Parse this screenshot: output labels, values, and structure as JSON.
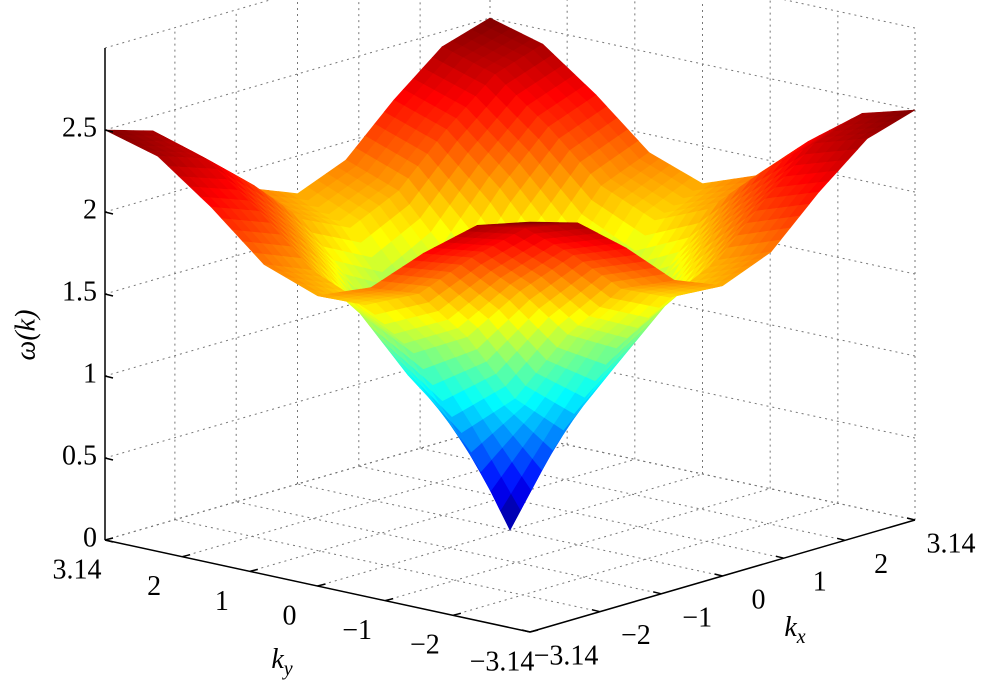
{
  "chart_data": {
    "type": "surface",
    "zlabel": "ω(k)",
    "xlabel": [
      "k",
      "x"
    ],
    "ylabel": [
      "k",
      "y"
    ],
    "x": [
      -3.14,
      -2.36,
      -1.57,
      -0.79,
      0,
      0.79,
      1.57,
      2.36,
      3.14
    ],
    "y": [
      -3.14,
      -2.36,
      -1.57,
      -0.79,
      0,
      0.79,
      1.57,
      2.36,
      3.14
    ],
    "z": [
      [
        2.5,
        2.41,
        2.17,
        1.89,
        1.77,
        1.89,
        2.17,
        2.41,
        2.5
      ],
      [
        2.41,
        2.31,
        2.06,
        1.77,
        1.63,
        1.77,
        2.06,
        2.31,
        2.41
      ],
      [
        2.17,
        2.06,
        1.77,
        1.42,
        1.25,
        1.42,
        1.77,
        2.06,
        2.17
      ],
      [
        1.89,
        1.77,
        1.42,
        0.96,
        0.68,
        0.96,
        1.42,
        1.77,
        1.89
      ],
      [
        1.77,
        1.63,
        1.25,
        0.68,
        0,
        0.68,
        1.25,
        1.63,
        1.77
      ],
      [
        1.89,
        1.77,
        1.42,
        0.96,
        0.68,
        0.96,
        1.42,
        1.77,
        1.89
      ],
      [
        2.17,
        2.06,
        1.77,
        1.42,
        1.25,
        1.42,
        1.77,
        2.06,
        2.17
      ],
      [
        2.41,
        2.31,
        2.06,
        1.77,
        1.63,
        1.77,
        2.06,
        2.31,
        2.41
      ],
      [
        2.5,
        2.41,
        2.17,
        1.89,
        1.77,
        1.89,
        2.17,
        2.41,
        2.5
      ]
    ],
    "colormap": "jet",
    "xlim": [
      -3.14,
      3.14
    ],
    "ylim": [
      -3.14,
      3.14
    ],
    "zlim": [
      0,
      3
    ],
    "xticks": [
      {
        "value": -3.14,
        "label": "−3.14"
      },
      {
        "value": -2,
        "label": "−2"
      },
      {
        "value": -1,
        "label": "−1"
      },
      0,
      1,
      2,
      3.14
    ],
    "yticks": [
      {
        "value": -3.14,
        "label": "−3.14"
      },
      {
        "value": -2,
        "label": "−2"
      },
      {
        "value": -1,
        "label": "−1"
      },
      0,
      1,
      2,
      3.14
    ],
    "zticks": [
      0,
      0.5,
      1,
      1.5,
      2,
      2.5
    ],
    "grid": true
  }
}
